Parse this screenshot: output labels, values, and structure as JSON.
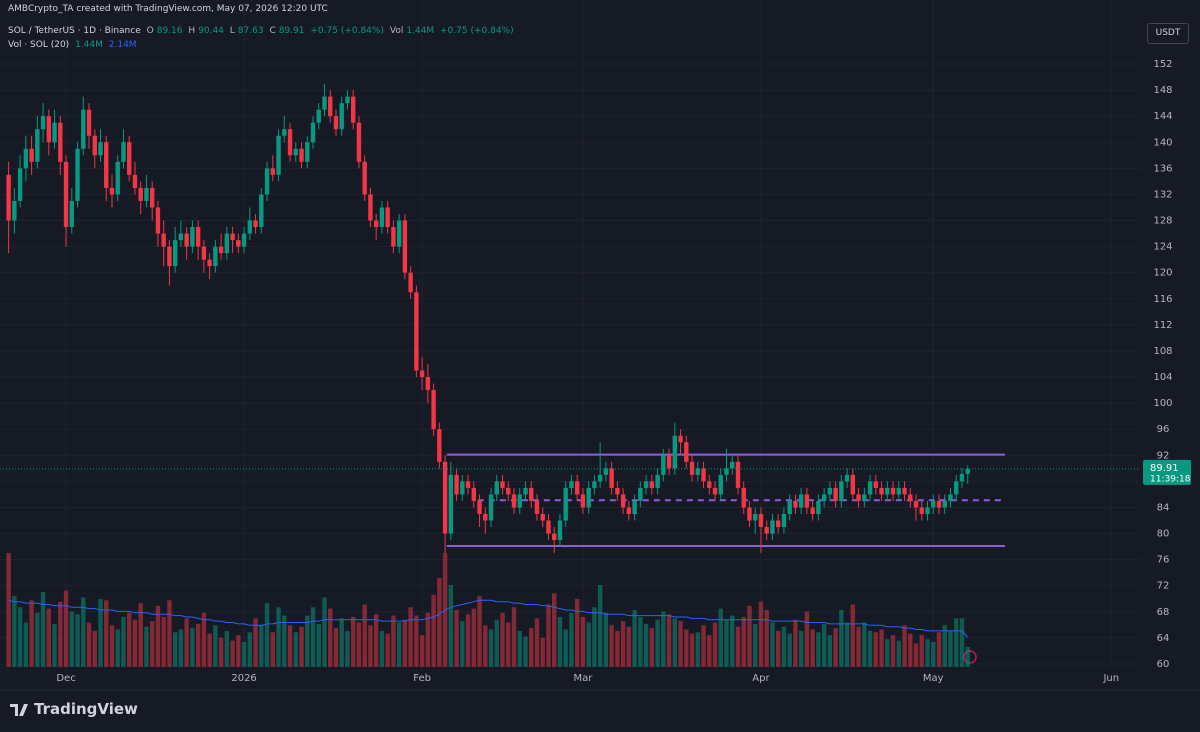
{
  "chart_data": {
    "type": "candlestick",
    "header": "AMBCrypto_TA created with TradingView.com, May 07, 2026 12:20 UTC",
    "legend": {
      "symbol": "SOL / TetherUS · 1D · Binance",
      "labels": [
        "O",
        "H",
        "L",
        "C"
      ],
      "change": "+0.75 (+0.84%)",
      "vol_label": "Vol",
      "vol_value": "1.44M",
      "vol_change": "+0.75 (+0.84%)",
      "indicator": "Vol · SOL (20)",
      "indicator_values": [
        "1.44M",
        "2.14M"
      ]
    },
    "currency": "USDT",
    "countdown": "11:39:18",
    "brand": "TradingView",
    "up_color": "#089981",
    "down_color": "#f23645",
    "ma_color": "#2962ff",
    "drawing_color": "#8e5de0",
    "grid": true,
    "xlim": [
      -1.5,
      197
    ],
    "ylim": [
      60,
      152
    ],
    "yticks": [
      60,
      64,
      68,
      72,
      76,
      80,
      84,
      88,
      92,
      96,
      100,
      104,
      108,
      112,
      116,
      120,
      124,
      128,
      132,
      136,
      140,
      144,
      148,
      152
    ],
    "xticks": [
      {
        "value": 10,
        "label": "Dec"
      },
      {
        "value": 41,
        "label": "2026"
      },
      {
        "value": 72,
        "label": "Feb"
      },
      {
        "value": 100,
        "label": "Mar"
      },
      {
        "value": 131,
        "label": "Apr"
      },
      {
        "value": 161,
        "label": "May"
      },
      {
        "value": 192,
        "label": "Jun"
      }
    ],
    "drawings": [
      {
        "style": "solid",
        "price": 92.1,
        "from": 76.3,
        "to": 173.5
      },
      {
        "style": "dashed",
        "price": 85.1,
        "from": 81.7,
        "to": 173.5
      },
      {
        "style": "solid",
        "price": 78.1,
        "from": 76.3,
        "to": 173.5
      }
    ],
    "open": [
      135,
      128,
      131,
      136,
      139,
      137,
      142,
      144,
      140,
      143,
      137,
      127,
      131,
      139,
      145,
      141,
      138,
      140,
      133,
      132,
      137,
      140,
      135,
      133,
      131,
      133,
      130,
      126,
      124,
      121,
      125,
      126,
      124,
      127,
      124,
      122,
      121,
      124,
      123,
      126,
      125,
      124,
      126,
      128,
      127,
      132,
      136,
      135,
      141,
      142,
      138,
      139,
      137,
      140,
      143,
      145,
      147,
      144,
      142,
      146,
      147,
      143,
      137,
      132,
      128,
      127,
      130,
      127,
      124,
      128,
      120,
      117,
      105,
      104,
      102,
      96,
      91,
      80,
      89,
      86,
      88,
      87,
      85,
      83,
      82,
      86,
      88,
      87,
      86,
      84,
      86,
      87,
      85,
      83,
      82,
      80,
      79,
      82,
      87,
      88,
      86,
      84,
      87,
      88,
      89,
      90,
      87,
      86,
      84,
      83,
      85,
      87,
      88,
      87,
      89,
      92,
      90,
      95,
      94,
      91,
      89,
      90,
      88,
      87,
      86,
      89,
      90,
      91,
      87,
      84,
      82,
      83,
      81,
      80,
      82,
      81,
      83,
      85,
      84,
      86,
      84,
      83,
      85,
      86,
      87,
      85,
      88,
      89,
      86,
      85,
      86,
      88,
      87,
      86,
      87,
      86,
      87,
      86,
      85,
      84,
      83,
      84,
      85,
      84,
      85,
      86,
      88,
      89.16
    ],
    "high": [
      137,
      133,
      138,
      141,
      141,
      144,
      146,
      145,
      145,
      144,
      138,
      133,
      140,
      147,
      146,
      142,
      142,
      141,
      135,
      138,
      142,
      141,
      137,
      134,
      135,
      134,
      131,
      128,
      125,
      127,
      128,
      127,
      128,
      128,
      125,
      123,
      125,
      126,
      127,
      127,
      126,
      127,
      130,
      129,
      133,
      137,
      138,
      142,
      144,
      143,
      140,
      140,
      141,
      144,
      146,
      149,
      148,
      145,
      147,
      148,
      148,
      144,
      138,
      133,
      129,
      131,
      131,
      128,
      129,
      129,
      121,
      118,
      107,
      106,
      103,
      97,
      92,
      91,
      90,
      89,
      89,
      88,
      86,
      84,
      87,
      89,
      89,
      88,
      87,
      87,
      88,
      88,
      86,
      84,
      83,
      81,
      83,
      88,
      89,
      89,
      87,
      88,
      89,
      94,
      91,
      91,
      88,
      87,
      85,
      86,
      88,
      89,
      89,
      90,
      93,
      93,
      97,
      96,
      95,
      92,
      91,
      91,
      89,
      88,
      90,
      93,
      92,
      92,
      88,
      85,
      84,
      84,
      82,
      83,
      83,
      84,
      86,
      86,
      87,
      87,
      85,
      86,
      87,
      88,
      88,
      89,
      90,
      90,
      87,
      87,
      89,
      89,
      88,
      88,
      88,
      88,
      88,
      87,
      86,
      85,
      85,
      86,
      86,
      86,
      87,
      89,
      90,
      90.44
    ],
    "low": [
      123,
      126,
      130,
      134,
      135,
      136,
      140,
      138,
      139,
      135,
      124,
      126,
      130,
      138,
      139,
      136,
      137,
      131,
      130,
      131,
      136,
      134,
      132,
      129,
      130,
      128,
      124,
      121,
      118,
      120,
      124,
      122,
      123,
      122,
      120,
      119,
      120,
      122,
      122,
      123,
      123,
      123,
      125,
      126,
      126,
      131,
      134,
      134,
      140,
      137,
      137,
      136,
      136,
      139,
      142,
      144,
      143,
      141,
      141,
      145,
      142,
      136,
      131,
      127,
      125,
      126,
      126,
      123,
      123,
      119,
      116,
      104,
      102,
      100,
      95,
      90,
      77,
      79,
      85,
      85,
      86,
      84,
      81,
      80,
      81,
      85,
      86,
      85,
      83,
      83,
      85,
      84,
      82,
      81,
      79,
      77,
      78,
      81,
      86,
      85,
      83,
      83,
      86,
      87,
      88,
      86,
      85,
      83,
      82,
      82,
      84,
      86,
      86,
      86,
      88,
      89,
      89,
      92,
      90,
      88,
      88,
      87,
      86,
      85,
      85,
      88,
      89,
      86,
      83,
      81,
      80,
      77,
      79,
      79,
      80,
      80,
      82,
      83,
      83,
      83,
      82,
      82,
      84,
      85,
      84,
      84,
      87,
      85,
      84,
      84,
      85,
      86,
      85,
      85,
      85,
      85,
      85,
      84,
      82,
      82,
      82,
      83,
      83,
      83,
      84,
      85,
      87,
      87.63
    ],
    "close": [
      128,
      131,
      136,
      139,
      137,
      142,
      144,
      140,
      143,
      137,
      127,
      131,
      139,
      145,
      141,
      138,
      140,
      133,
      132,
      137,
      140,
      135,
      133,
      131,
      133,
      130,
      126,
      124,
      121,
      125,
      126,
      124,
      127,
      124,
      122,
      121,
      124,
      123,
      126,
      125,
      124,
      126,
      128,
      127,
      132,
      136,
      135,
      141,
      142,
      138,
      139,
      137,
      140,
      143,
      145,
      147,
      144,
      142,
      146,
      147,
      143,
      137,
      132,
      128,
      127,
      130,
      127,
      124,
      128,
      120,
      117,
      105,
      104,
      102,
      96,
      91,
      80,
      89,
      86,
      88,
      87,
      85,
      83,
      82,
      86,
      88,
      87,
      86,
      84,
      86,
      87,
      85,
      83,
      82,
      80,
      79,
      82,
      87,
      88,
      86,
      84,
      87,
      88,
      89,
      90,
      87,
      86,
      84,
      83,
      85,
      87,
      88,
      87,
      89,
      92,
      90,
      95,
      94,
      91,
      89,
      90,
      88,
      87,
      86,
      89,
      90,
      91,
      87,
      84,
      82,
      83,
      81,
      80,
      82,
      81,
      83,
      85,
      84,
      86,
      84,
      83,
      85,
      86,
      87,
      85,
      88,
      89,
      86,
      85,
      86,
      88,
      87,
      86,
      87,
      86,
      87,
      86,
      85,
      84,
      83,
      84,
      85,
      84,
      85,
      86,
      88,
      89.16,
      89.91
    ],
    "volume": [
      8.2,
      5.1,
      4.3,
      3.2,
      4.8,
      3.9,
      5.4,
      4.2,
      3.1,
      4.7,
      5.5,
      4.0,
      3.8,
      5.0,
      3.2,
      2.6,
      4.9,
      4.8,
      3.0,
      2.7,
      3.6,
      3.9,
      3.4,
      4.6,
      2.9,
      3.3,
      4.4,
      3.6,
      4.8,
      2.5,
      2.7,
      3.5,
      2.8,
      3.1,
      3.9,
      2.4,
      3.0,
      2.1,
      2.6,
      1.9,
      2.3,
      1.8,
      2.5,
      3.5,
      3.0,
      4.6,
      2.5,
      4.3,
      3.7,
      3.0,
      2.5,
      2.9,
      3.7,
      4.3,
      3.1,
      5.0,
      4.2,
      2.8,
      3.5,
      2.6,
      3.6,
      3.2,
      4.5,
      3.0,
      3.8,
      2.6,
      2.4,
      3.7,
      3.2,
      3.4,
      4.3,
      3.7,
      2.3,
      3.9,
      5.2,
      6.4,
      8.2,
      5.9,
      4.1,
      3.3,
      3.8,
      4.2,
      5.1,
      3.0,
      2.7,
      3.4,
      3.9,
      3.2,
      4.3,
      2.6,
      2.2,
      2.8,
      3.5,
      2.1,
      4.5,
      5.3,
      3.6,
      2.7,
      3.9,
      4.9,
      3.6,
      3.2,
      4.3,
      5.9,
      3.9,
      3.0,
      2.6,
      3.3,
      2.9,
      4.1,
      3.6,
      3.1,
      2.8,
      3.4,
      4.0,
      3.8,
      3.5,
      3.3,
      2.7,
      2.4,
      2.5,
      3.0,
      2.3,
      3.2,
      4.2,
      3.4,
      3.7,
      2.9,
      3.6,
      4.4,
      3.1,
      4.7,
      4.1,
      3.2,
      2.6,
      2.9,
      2.4,
      3.4,
      2.6,
      4.0,
      2.7,
      2.5,
      3.1,
      2.3,
      2.8,
      4.1,
      3.2,
      4.5,
      2.9,
      3.2,
      2.6,
      2.5,
      2.7,
      2.0,
      2.3,
      1.9,
      3.0,
      2.4,
      1.7,
      2.3,
      2.0,
      1.8,
      2.5,
      3.0,
      2.6,
      3.5,
      3.5,
      1.44
    ],
    "volume_ma": [
      4.8,
      4.7,
      4.7,
      4.6,
      4.6,
      4.6,
      4.5,
      4.5,
      4.4,
      4.4,
      4.4,
      4.3,
      4.3,
      4.3,
      4.2,
      4.2,
      4.1,
      4.1,
      4.1,
      4.0,
      4.0,
      4.0,
      3.9,
      3.9,
      3.9,
      3.8,
      3.8,
      3.8,
      3.8,
      3.7,
      3.7,
      3.6,
      3.6,
      3.5,
      3.4,
      3.4,
      3.3,
      3.3,
      3.2,
      3.2,
      3.1,
      3.1,
      3.0,
      3.0,
      3.0,
      3.1,
      3.1,
      3.2,
      3.2,
      3.2,
      3.2,
      3.2,
      3.2,
      3.3,
      3.3,
      3.4,
      3.4,
      3.4,
      3.4,
      3.4,
      3.4,
      3.4,
      3.4,
      3.4,
      3.4,
      3.3,
      3.3,
      3.3,
      3.3,
      3.3,
      3.4,
      3.4,
      3.4,
      3.5,
      3.6,
      3.8,
      4.1,
      4.3,
      4.4,
      4.5,
      4.6,
      4.7,
      4.8,
      4.8,
      4.8,
      4.7,
      4.7,
      4.7,
      4.6,
      4.6,
      4.5,
      4.5,
      4.5,
      4.4,
      4.4,
      4.3,
      4.2,
      4.1,
      4.1,
      4.0,
      4.0,
      3.9,
      3.9,
      3.9,
      3.8,
      3.8,
      3.8,
      3.8,
      3.7,
      3.7,
      3.7,
      3.7,
      3.7,
      3.7,
      3.7,
      3.7,
      3.6,
      3.6,
      3.6,
      3.5,
      3.5,
      3.5,
      3.4,
      3.4,
      3.4,
      3.4,
      3.4,
      3.4,
      3.4,
      3.4,
      3.4,
      3.4,
      3.4,
      3.3,
      3.3,
      3.3,
      3.3,
      3.3,
      3.3,
      3.2,
      3.2,
      3.2,
      3.2,
      3.1,
      3.1,
      3.1,
      3.1,
      3.1,
      3.1,
      3.1,
      3.0,
      3.0,
      3.0,
      2.9,
      2.9,
      2.9,
      2.8,
      2.8,
      2.7,
      2.7,
      2.6,
      2.6,
      2.6,
      2.6,
      2.6,
      2.6,
      2.6,
      2.14
    ]
  }
}
